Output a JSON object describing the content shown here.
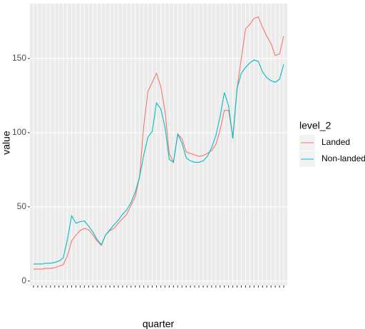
{
  "chart_data": {
    "type": "line",
    "x_label": "quarter",
    "y_label": "value",
    "legend_title": "level_2",
    "categories": [
      null,
      null,
      null,
      null,
      null,
      null,
      null,
      null,
      null,
      null,
      null,
      null,
      null,
      null,
      null,
      null,
      null,
      null,
      null,
      null,
      null,
      null,
      null,
      null,
      null,
      null,
      null,
      null,
      null,
      null,
      null,
      null,
      null,
      null,
      null,
      null,
      null,
      null,
      null,
      null,
      null,
      null,
      null,
      null,
      null,
      null,
      null,
      null,
      null,
      null,
      null,
      null,
      null,
      null,
      null,
      null,
      null,
      null,
      null,
      null
    ],
    "series": [
      {
        "name": "Landed",
        "color": "#F8766D",
        "values": [
          8,
          8,
          8,
          8.5,
          8.5,
          9,
          10,
          11,
          17,
          27,
          31,
          34,
          35.5,
          34.5,
          31,
          27,
          24,
          31,
          34,
          35.5,
          39,
          42,
          45,
          51,
          57,
          70,
          105,
          128,
          134,
          140,
          131,
          115,
          86,
          80,
          99,
          96,
          87,
          86,
          85,
          84,
          84.6,
          86,
          88,
          92,
          102,
          115,
          115,
          97,
          130,
          150,
          170,
          173,
          177,
          178,
          171,
          165,
          160,
          152,
          153,
          165
        ]
      },
      {
        "name": "Non-landed",
        "color": "#00BFC4",
        "values": [
          11.5,
          11.5,
          11.5,
          12,
          12,
          12.5,
          13.5,
          15.5,
          28,
          44,
          39,
          40,
          40.5,
          37,
          33,
          28,
          24.5,
          31,
          34.5,
          38,
          41,
          45,
          48,
          53,
          60,
          70,
          85,
          97,
          101,
          120,
          116,
          104,
          82,
          80,
          99,
          93,
          83,
          81,
          80,
          80,
          81,
          84,
          90,
          98,
          111,
          127,
          118,
          96,
          130,
          140,
          144,
          147,
          149,
          148,
          141,
          137,
          135,
          134,
          136,
          146
        ]
      }
    ],
    "ylim": [
      -3,
      187
    ],
    "yticks": [
      0,
      50,
      100,
      150
    ],
    "grid": true,
    "legend_position": "right"
  }
}
